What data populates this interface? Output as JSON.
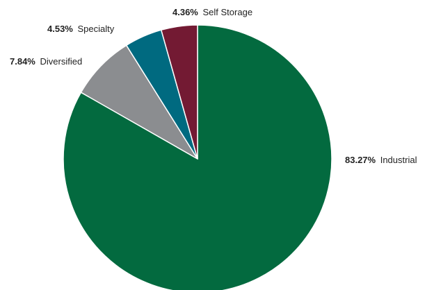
{
  "chart_data": {
    "type": "pie",
    "slices": [
      {
        "label": "Industrial",
        "value": 83.27,
        "value_text": "83.27%",
        "color": "#036a3f"
      },
      {
        "label": "Diversified",
        "value": 7.84,
        "value_text": "7.84%",
        "color": "#8b8d90"
      },
      {
        "label": "Specialty",
        "value": 4.53,
        "value_text": "4.53%",
        "color": "#006a80"
      },
      {
        "label": "Self Storage",
        "value": 4.36,
        "value_text": "4.36%",
        "color": "#731a33"
      }
    ]
  }
}
